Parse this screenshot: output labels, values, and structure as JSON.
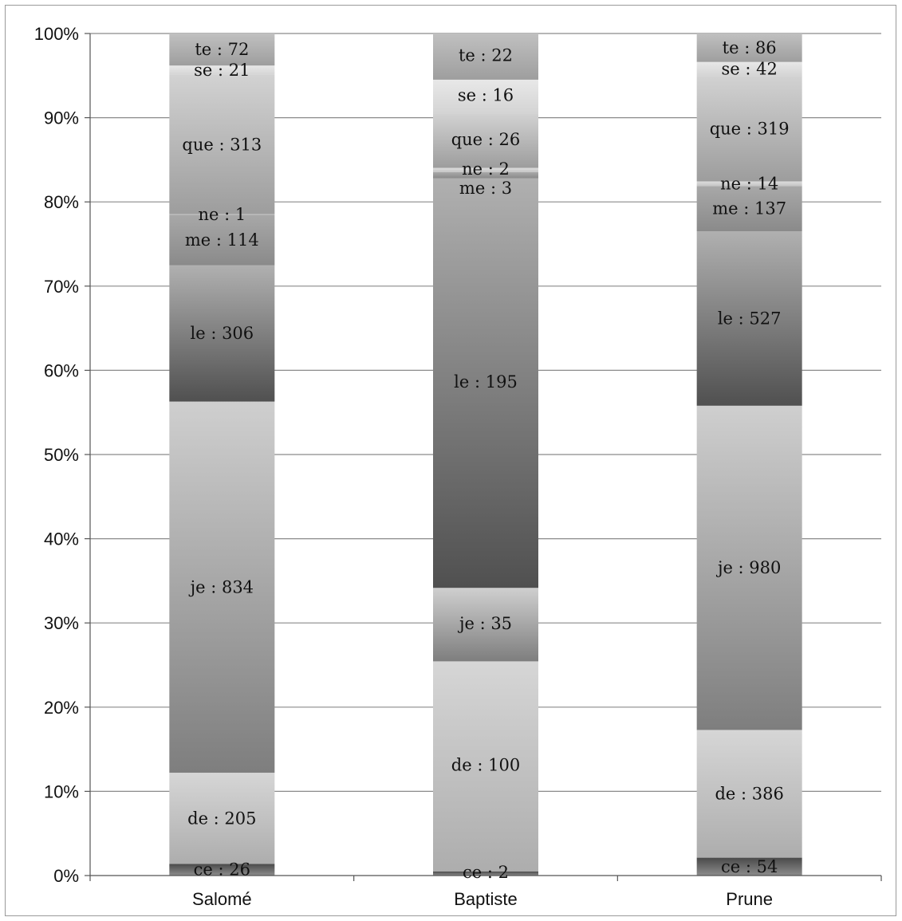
{
  "chart_data": {
    "type": "bar",
    "stacked": true,
    "normalized": true,
    "categories": [
      "Salomé",
      "Baptiste",
      "Prune"
    ],
    "series": [
      {
        "key": "ce",
        "values": [
          26,
          2,
          54
        ],
        "color_top": "#4a4a4a",
        "color_bottom": "#8c8c8c"
      },
      {
        "key": "de",
        "values": [
          205,
          100,
          386
        ],
        "color_top": "#d6d6d6",
        "color_bottom": "#adadad"
      },
      {
        "key": "je",
        "values": [
          834,
          35,
          980
        ],
        "color_top": "#cfcfcf",
        "color_bottom": "#7e7e7e"
      },
      {
        "key": "le",
        "values": [
          306,
          195,
          527
        ],
        "color_top": "#b0b0b0",
        "color_bottom": "#505050"
      },
      {
        "key": "me",
        "values": [
          114,
          3,
          137
        ],
        "color_top": "#a8a8a8",
        "color_bottom": "#8a8a8a"
      },
      {
        "key": "ne",
        "values": [
          1,
          2,
          14
        ],
        "color_top": "#dddddd",
        "color_bottom": "#c4c4c4"
      },
      {
        "key": "que",
        "values": [
          313,
          26,
          319
        ],
        "color_top": "#d2d2d2",
        "color_bottom": "#9d9d9d"
      },
      {
        "key": "se",
        "values": [
          21,
          16,
          42
        ],
        "color_top": "#e8e8e8",
        "color_bottom": "#d4d4d4"
      },
      {
        "key": "te",
        "values": [
          72,
          22,
          86
        ],
        "color_top": "#c0c0c0",
        "color_bottom": "#9e9e9e"
      }
    ],
    "segment_labels": [
      [
        "ce : 26",
        "de : 205",
        "je : 834",
        "le : 306",
        "me : 114",
        "ne : 1",
        "que : 313",
        "se : 21",
        "te : 72"
      ],
      [
        "ce : 2",
        "de : 100",
        "je : 35",
        "le : 195",
        "me : 3",
        "ne : 2",
        "que : 26",
        "se : 16",
        "te : 22"
      ],
      [
        "ce : 54",
        "de : 386",
        "je : 980",
        "le : 527",
        "me : 137",
        "ne : 14",
        "que : 319",
        "se : 42",
        "te : 86"
      ]
    ],
    "ylim": [
      0,
      100
    ],
    "yticks": [
      "0%",
      "10%",
      "20%",
      "30%",
      "40%",
      "50%",
      "60%",
      "70%",
      "80%",
      "90%",
      "100%"
    ],
    "grid": true,
    "legend": "none",
    "title": "",
    "xlabel": "",
    "ylabel": ""
  }
}
